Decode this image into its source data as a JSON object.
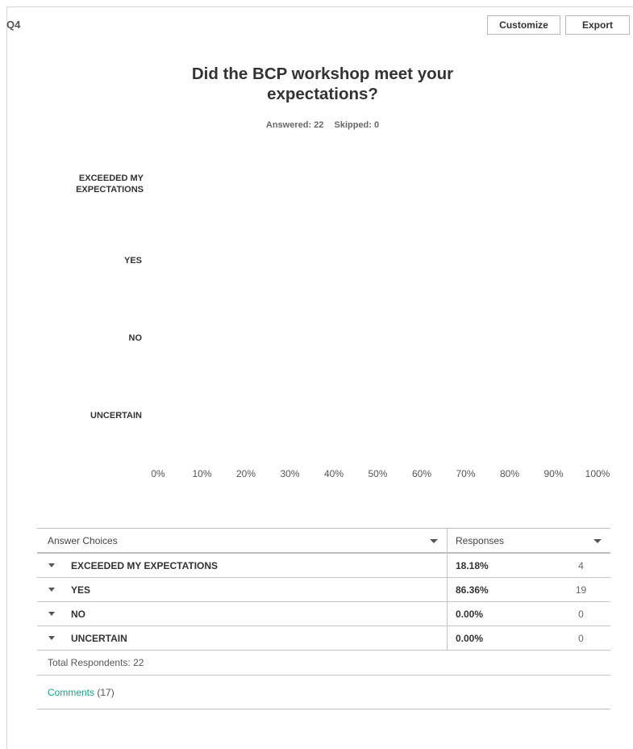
{
  "question": {
    "number": "Q4",
    "title": "Did the BCP workshop meet your expectations?",
    "answered_label": "Answered: 22",
    "skipped_label": "Skipped: 0"
  },
  "toolbar": {
    "customize_label": "Customize",
    "export_label": "Export"
  },
  "chart_data": {
    "type": "bar",
    "orientation": "horizontal",
    "categories": [
      "EXCEEDED MY EXPECTATIONS",
      "YES",
      "NO",
      "UNCERTAIN"
    ],
    "values": [
      18.18,
      86.36,
      0,
      0
    ],
    "xlim": [
      0,
      100
    ],
    "x_ticks": [
      "0%",
      "10%",
      "20%",
      "30%",
      "40%",
      "50%",
      "60%",
      "70%",
      "80%",
      "90%",
      "100%"
    ],
    "bars_visible": false,
    "grid": false
  },
  "table": {
    "header_choices": "Answer Choices",
    "header_responses": "Responses",
    "rows": [
      {
        "choice": "EXCEEDED MY EXPECTATIONS",
        "percent": "18.18%",
        "count": "4"
      },
      {
        "choice": "YES",
        "percent": "86.36%",
        "count": "19"
      },
      {
        "choice": "NO",
        "percent": "0.00%",
        "count": "0"
      },
      {
        "choice": "UNCERTAIN",
        "percent": "0.00%",
        "count": "0"
      }
    ],
    "total_respondents": "Total Respondents: 22",
    "comments_link": "Comments",
    "comments_count": "(17)"
  }
}
